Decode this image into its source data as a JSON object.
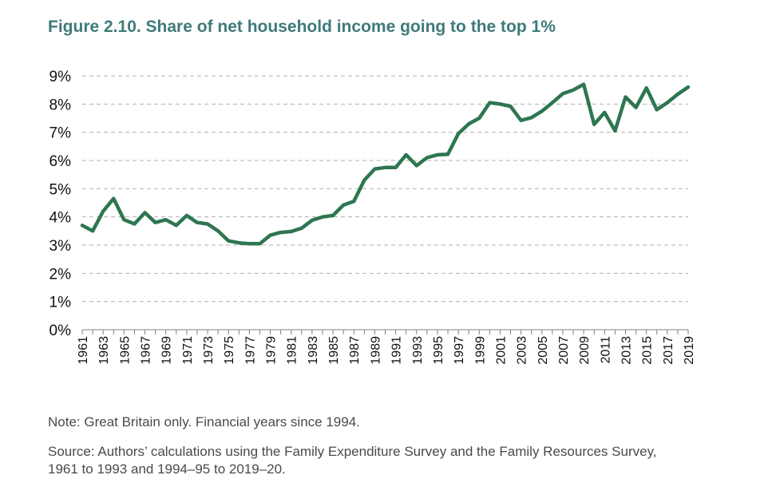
{
  "figure": {
    "title": "Figure 2.10. Share of net household income going to the top 1%",
    "note": "Note: Great Britain only. Financial years since 1994.",
    "source": "Source: Authors’ calculations using the Family Expenditure Survey and the Family Resources Survey, 1961 to 1993 and 1994–95 to 2019–20."
  },
  "chart_data": {
    "type": "line",
    "title": "Figure 2.10. Share of net household income going to the top 1%",
    "xlabel": "",
    "ylabel": "",
    "ylim": [
      0,
      9
    ],
    "yticks": [
      "0%",
      "1%",
      "2%",
      "3%",
      "4%",
      "5%",
      "6%",
      "7%",
      "8%",
      "9%"
    ],
    "xticks": [
      "1961",
      "1963",
      "1965",
      "1967",
      "1969",
      "1971",
      "1973",
      "1975",
      "1977",
      "1979",
      "1981",
      "1983",
      "1985",
      "1987",
      "1989",
      "1991",
      "1993",
      "1995",
      "1997",
      "1999",
      "2001",
      "2003",
      "2005",
      "2007",
      "2009",
      "2011",
      "2013",
      "2015",
      "2017",
      "2019"
    ],
    "grid": "horizontal dashed",
    "line_color": "#2e7650",
    "x": [
      1961,
      1962,
      1963,
      1964,
      1965,
      1966,
      1967,
      1968,
      1969,
      1970,
      1971,
      1972,
      1973,
      1974,
      1975,
      1976,
      1977,
      1978,
      1979,
      1980,
      1981,
      1982,
      1983,
      1984,
      1985,
      1986,
      1987,
      1988,
      1989,
      1990,
      1991,
      1992,
      1993,
      1994,
      1995,
      1996,
      1997,
      1998,
      1999,
      2000,
      2001,
      2002,
      2003,
      2004,
      2005,
      2006,
      2007,
      2008,
      2009,
      2010,
      2011,
      2012,
      2013,
      2014,
      2015,
      2016,
      2017,
      2018,
      2019
    ],
    "values": [
      3.7,
      3.5,
      4.2,
      4.65,
      3.9,
      3.75,
      4.15,
      3.8,
      3.9,
      3.7,
      4.05,
      3.8,
      3.75,
      3.5,
      3.15,
      3.08,
      3.05,
      3.05,
      3.35,
      3.45,
      3.48,
      3.6,
      3.88,
      4.0,
      4.05,
      4.42,
      4.55,
      5.3,
      5.7,
      5.75,
      5.75,
      6.2,
      5.82,
      6.1,
      6.2,
      6.22,
      6.95,
      7.3,
      7.5,
      8.05,
      8.0,
      7.92,
      7.42,
      7.52,
      7.75,
      8.05,
      8.37,
      8.5,
      8.7,
      7.28,
      7.7,
      7.05,
      8.25,
      7.88,
      8.57,
      7.8,
      8.05,
      8.35,
      8.6
    ]
  }
}
